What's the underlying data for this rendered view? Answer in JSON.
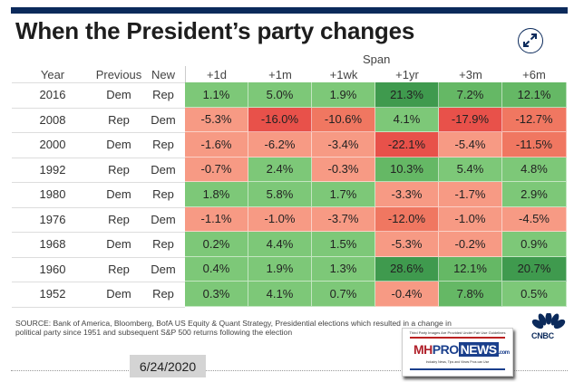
{
  "header": {
    "title": "When the President’s party changes",
    "expand_icon": "expand-arrows-icon"
  },
  "colors": {
    "top_bar": "#0b2a5b",
    "strong_green": "#3f9a4e",
    "mid_green": "#65b865",
    "light_green": "#7dc878",
    "light_red": "#f79a84",
    "mid_red": "#f07761",
    "strong_red": "#e8514a"
  },
  "chart_data": {
    "type": "table",
    "title": "When the President’s party changes",
    "span_label": "Span",
    "label_columns": [
      "Year",
      "Previous",
      "New"
    ],
    "columns": [
      "+1d",
      "+1m",
      "+1wk",
      "+1yr",
      "+3m",
      "+6m"
    ],
    "rows": [
      {
        "year": "2016",
        "previous": "Dem",
        "new": "Rep",
        "values": [
          1.1,
          5.0,
          1.9,
          21.3,
          7.2,
          12.1
        ],
        "labels": [
          "1.1%",
          "5.0%",
          "1.9%",
          "21.3%",
          "7.2%",
          "12.1%"
        ]
      },
      {
        "year": "2008",
        "previous": "Rep",
        "new": "Dem",
        "values": [
          -5.3,
          -16.0,
          -10.6,
          4.1,
          -17.9,
          -12.7
        ],
        "labels": [
          "-5.3%",
          "-16.0%",
          "-10.6%",
          "4.1%",
          "-17.9%",
          "-12.7%"
        ]
      },
      {
        "year": "2000",
        "previous": "Dem",
        "new": "Rep",
        "values": [
          -1.6,
          -6.2,
          -3.4,
          -22.1,
          -5.4,
          -11.5
        ],
        "labels": [
          "-1.6%",
          "-6.2%",
          "-3.4%",
          "-22.1%",
          "-5.4%",
          "-11.5%"
        ]
      },
      {
        "year": "1992",
        "previous": "Rep",
        "new": "Dem",
        "values": [
          -0.7,
          2.4,
          -0.3,
          10.3,
          5.4,
          4.8
        ],
        "labels": [
          "-0.7%",
          "2.4%",
          "-0.3%",
          "10.3%",
          "5.4%",
          "4.8%"
        ]
      },
      {
        "year": "1980",
        "previous": "Dem",
        "new": "Rep",
        "values": [
          1.8,
          5.8,
          1.7,
          -3.3,
          -1.7,
          2.9
        ],
        "labels": [
          "1.8%",
          "5.8%",
          "1.7%",
          "-3.3%",
          "-1.7%",
          "2.9%"
        ]
      },
      {
        "year": "1976",
        "previous": "Rep",
        "new": "Dem",
        "values": [
          -1.1,
          -1.0,
          -3.7,
          -12.0,
          -1.0,
          -4.5
        ],
        "labels": [
          "-1.1%",
          "-1.0%",
          "-3.7%",
          "-12.0%",
          "-1.0%",
          "-4.5%"
        ]
      },
      {
        "year": "1968",
        "previous": "Dem",
        "new": "Rep",
        "values": [
          0.2,
          4.4,
          1.5,
          -5.3,
          -0.2,
          0.9
        ],
        "labels": [
          "0.2%",
          "4.4%",
          "1.5%",
          "-5.3%",
          "-0.2%",
          "0.9%"
        ]
      },
      {
        "year": "1960",
        "previous": "Rep",
        "new": "Dem",
        "values": [
          0.4,
          1.9,
          1.3,
          28.6,
          12.1,
          20.7
        ],
        "labels": [
          "0.4%",
          "1.9%",
          "1.3%",
          "28.6%",
          "12.1%",
          "20.7%"
        ]
      },
      {
        "year": "1952",
        "previous": "Dem",
        "new": "Rep",
        "values": [
          0.3,
          4.1,
          0.7,
          -0.4,
          7.8,
          0.5
        ],
        "labels": [
          "0.3%",
          "4.1%",
          "0.7%",
          "-0.4%",
          "7.8%",
          "0.5%"
        ]
      }
    ]
  },
  "footer": {
    "source_line1": "SOURCE: Bank of America, Bloomberg, BofA US Equity & Quant Strategy, Presidential elections which resulted in a change in",
    "source_line2": "political party since 1951 and subsequent S&P 500 returns following the election",
    "logo": "CNBC",
    "date": "6/24/2020",
    "watermark_caption": "Third Party Images Are Provided Under Fair Use Guidelines",
    "watermark_logo_mh": "MH",
    "watermark_logo_pro": "PRO",
    "watermark_logo_news": "NEWS",
    "watermark_logo_com": ".com",
    "watermark_tagline": "Industry News, Tips and Views Pros can Use"
  }
}
